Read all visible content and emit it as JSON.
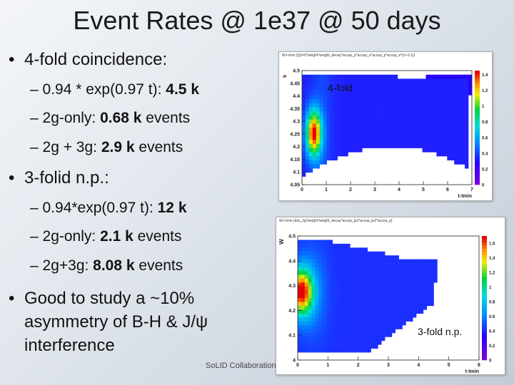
{
  "slide": {
    "title": "Event Rates @ 1e37 @ 50 days",
    "footer": "SoLID Collaboration",
    "bullets": {
      "b1": "4-fold coincidence:",
      "b1_items": [
        {
          "pre": "– 0.94 * exp(0.97 t):   ",
          "val": "4.5 k",
          "post": ""
        },
        {
          "pre": "– 2g-only:   ",
          "val": "0.68 k",
          "post": " events"
        },
        {
          "pre": "– 2g + 3g:  ",
          "val": "2.9 k",
          "post": " events"
        }
      ],
      "b2": "3-folid n.p.:",
      "b2_items": [
        {
          "pre": "– 0.94*exp(0.97 t):  ",
          "val": "12 k",
          "post": ""
        },
        {
          "pre": "– 2g-only: ",
          "val": "2.1 k",
          "post": " events"
        },
        {
          "pre": "– 2g+3g: ",
          "val": "8.08 k",
          "post": " events"
        }
      ],
      "b3_lines": [
        "Good to study a ~10%",
        "asymmetry of B-H & J/ψ",
        "interference"
      ]
    }
  },
  "chart_data": [
    {
      "type": "heatmap",
      "label": "4-fold",
      "title": "W:t-tmin {Q2=0*weight*weight_decay*accep_p*accep_e*accep_p*accep_e*(t>-0.1)}",
      "xlabel": "t-tmin",
      "ylabel": "s",
      "xlim": [
        0,
        7
      ],
      "ylim": [
        4.05,
        4.5
      ],
      "xticks": [
        "0",
        "1",
        "2",
        "3",
        "4",
        "5",
        "6",
        "7"
      ],
      "yticks": [
        "4.05",
        "4.1",
        "4.15",
        "4.2",
        "4.25",
        "4.3",
        "4.35",
        "4.4",
        "4.45",
        "4.5"
      ],
      "zticks": [
        "0",
        "0.2",
        "0.4",
        "0.6",
        "0.8",
        "1",
        "1.2",
        "1.4"
      ],
      "zlim": [
        0,
        1.45
      ]
    },
    {
      "type": "heatmap",
      "label": "3-fold n.p.",
      "title": "W:t-tmin {dxs_2g*weight*weight_decay*accep_je1*accep_je2*accep_p}",
      "xlabel": "t-tmin",
      "ylabel": "W",
      "xlim": [
        0,
        6
      ],
      "ylim": [
        4.0,
        4.55
      ],
      "xticks": [
        "0",
        "1",
        "2",
        "3",
        "4",
        "5",
        "6"
      ],
      "yticks": [
        "4",
        "4.1",
        "4.2",
        "4.3",
        "4.4",
        "4.5"
      ],
      "zticks": [
        "0",
        "0.2",
        "0.4",
        "0.6",
        "0.8",
        "1",
        "1.2",
        "1.4",
        "1.6"
      ],
      "zlim": [
        0,
        1.7
      ]
    }
  ]
}
